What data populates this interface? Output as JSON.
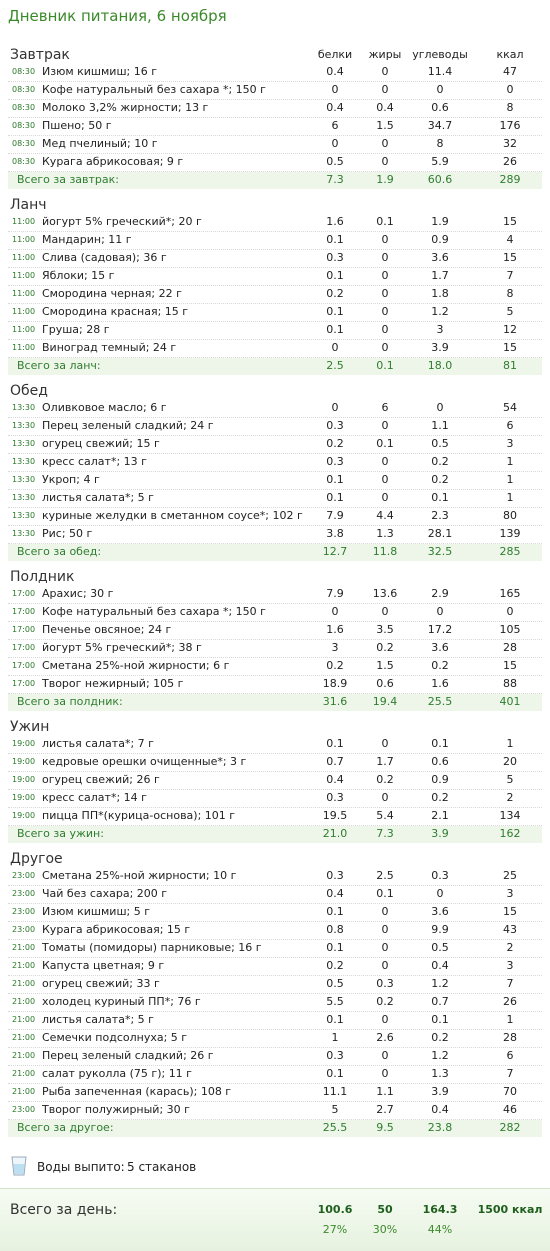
{
  "header": {
    "title": "Дневник питания, 6 ноября"
  },
  "columns": [
    "белки",
    "жиры",
    "углеводы",
    "ккал"
  ],
  "sections": [
    {
      "title": "Завтрак",
      "items": [
        [
          "08:30",
          "Изюм кишмиш; 16 г",
          "0.4",
          "0",
          "11.4",
          "47"
        ],
        [
          "08:30",
          "Кофе натуральный без сахара *; 150 г",
          "0",
          "0",
          "0",
          "0"
        ],
        [
          "08:30",
          "Молоко 3,2% жирности; 13 г",
          "0.4",
          "0.4",
          "0.6",
          "8"
        ],
        [
          "08:30",
          "Пшено; 50 г",
          "6",
          "1.5",
          "34.7",
          "176"
        ],
        [
          "08:30",
          "Мед пчелиный; 10 г",
          "0",
          "0",
          "8",
          "32"
        ],
        [
          "08:30",
          "Курага абрикосовая; 9 г",
          "0.5",
          "0",
          "5.9",
          "26"
        ]
      ],
      "total": [
        "Всего за завтрак:",
        "7.3",
        "1.9",
        "60.6",
        "289"
      ]
    },
    {
      "title": "Ланч",
      "items": [
        [
          "11:00",
          "йогурт 5% греческий*; 20 г",
          "1.6",
          "0.1",
          "1.9",
          "15"
        ],
        [
          "11:00",
          "Мандарин; 11 г",
          "0.1",
          "0",
          "0.9",
          "4"
        ],
        [
          "11:00",
          "Слива (садовая); 36 г",
          "0.3",
          "0",
          "3.6",
          "15"
        ],
        [
          "11:00",
          "Яблоки; 15 г",
          "0.1",
          "0",
          "1.7",
          "7"
        ],
        [
          "11:00",
          "Смородина черная; 22 г",
          "0.2",
          "0",
          "1.8",
          "8"
        ],
        [
          "11:00",
          "Смородина красная; 15 г",
          "0.1",
          "0",
          "1.2",
          "5"
        ],
        [
          "11:00",
          "Груша; 28 г",
          "0.1",
          "0",
          "3",
          "12"
        ],
        [
          "11:00",
          "Виноград темный; 24 г",
          "0",
          "0",
          "3.9",
          "15"
        ]
      ],
      "total": [
        "Всего за ланч:",
        "2.5",
        "0.1",
        "18.0",
        "81"
      ]
    },
    {
      "title": "Обед",
      "items": [
        [
          "13:30",
          "Оливковое масло; 6 г",
          "0",
          "6",
          "0",
          "54"
        ],
        [
          "13:30",
          "Перец зеленый сладкий; 24 г",
          "0.3",
          "0",
          "1.1",
          "6"
        ],
        [
          "13:30",
          "огурец свежий; 15 г",
          "0.2",
          "0.1",
          "0.5",
          "3"
        ],
        [
          "13:30",
          "кресс салат*; 13 г",
          "0.3",
          "0",
          "0.2",
          "1"
        ],
        [
          "13:30",
          "Укроп; 4 г",
          "0.1",
          "0",
          "0.2",
          "1"
        ],
        [
          "13:30",
          "листья салата*; 5 г",
          "0.1",
          "0",
          "0.1",
          "1"
        ],
        [
          "13:30",
          "куриные желудки в сметанном соусе*; 102 г",
          "7.9",
          "4.4",
          "2.3",
          "80"
        ],
        [
          "13:30",
          "Рис; 50 г",
          "3.8",
          "1.3",
          "28.1",
          "139"
        ]
      ],
      "total": [
        "Всего за обед:",
        "12.7",
        "11.8",
        "32.5",
        "285"
      ]
    },
    {
      "title": "Полдник",
      "items": [
        [
          "17:00",
          "Арахис; 30 г",
          "7.9",
          "13.6",
          "2.9",
          "165"
        ],
        [
          "17:00",
          "Кофе натуральный без сахара *; 150 г",
          "0",
          "0",
          "0",
          "0"
        ],
        [
          "17:00",
          "Печенье овсяное; 24 г",
          "1.6",
          "3.5",
          "17.2",
          "105"
        ],
        [
          "17:00",
          "йогурт 5% греческий*; 38 г",
          "3",
          "0.2",
          "3.6",
          "28"
        ],
        [
          "17:00",
          "Сметана 25%-ной жирности; 6 г",
          "0.2",
          "1.5",
          "0.2",
          "15"
        ],
        [
          "17:00",
          "Творог нежирный; 105 г",
          "18.9",
          "0.6",
          "1.6",
          "88"
        ]
      ],
      "total": [
        "Всего за полдник:",
        "31.6",
        "19.4",
        "25.5",
        "401"
      ]
    },
    {
      "title": "Ужин",
      "items": [
        [
          "19:00",
          "листья салата*; 7 г",
          "0.1",
          "0",
          "0.1",
          "1"
        ],
        [
          "19:00",
          "кедровые орешки очищенные*; 3 г",
          "0.7",
          "1.7",
          "0.6",
          "20"
        ],
        [
          "19:00",
          "огурец свежий; 26 г",
          "0.4",
          "0.2",
          "0.9",
          "5"
        ],
        [
          "19:00",
          "кресс салат*; 14 г",
          "0.3",
          "0",
          "0.2",
          "2"
        ],
        [
          "19:00",
          "пицца ПП*(курица-основа); 101 г",
          "19.5",
          "5.4",
          "2.1",
          "134"
        ]
      ],
      "total": [
        "Всего за ужин:",
        "21.0",
        "7.3",
        "3.9",
        "162"
      ]
    },
    {
      "title": "Другое",
      "items": [
        [
          "23:00",
          "Сметана 25%-ной жирности; 10 г",
          "0.3",
          "2.5",
          "0.3",
          "25"
        ],
        [
          "23:00",
          "Чай без сахара; 200 г",
          "0.4",
          "0.1",
          "0",
          "3"
        ],
        [
          "23:00",
          "Изюм кишмиш; 5 г",
          "0.1",
          "0",
          "3.6",
          "15"
        ],
        [
          "23:00",
          "Курага абрикосовая; 15 г",
          "0.8",
          "0",
          "9.9",
          "43"
        ],
        [
          "21:00",
          "Томаты (помидоры) парниковые; 16 г",
          "0.1",
          "0",
          "0.5",
          "2"
        ],
        [
          "21:00",
          "Капуста цветная; 9 г",
          "0.2",
          "0",
          "0.4",
          "3"
        ],
        [
          "21:00",
          "огурец свежий; 33 г",
          "0.5",
          "0.3",
          "1.2",
          "7"
        ],
        [
          "21:00",
          "холодец куриный ПП*; 76 г",
          "5.5",
          "0.2",
          "0.7",
          "26"
        ],
        [
          "21:00",
          "листья салата*; 5 г",
          "0.1",
          "0",
          "0.1",
          "1"
        ],
        [
          "21:00",
          "Семечки подсолнуха; 5 г",
          "1",
          "2.6",
          "0.2",
          "28"
        ],
        [
          "21:00",
          "Перец зеленый сладкий; 26 г",
          "0.3",
          "0",
          "1.2",
          "6"
        ],
        [
          "21:00",
          "салат руколла (75 г); 11 г",
          "0.1",
          "0",
          "1.3",
          "7"
        ],
        [
          "21:00",
          "Рыба запеченная (карась); 108 г",
          "11.1",
          "1.1",
          "3.9",
          "70"
        ],
        [
          "23:00",
          "Творог полужирный; 30 г",
          "5",
          "2.7",
          "0.4",
          "46"
        ]
      ],
      "total": [
        "Всего за другое:",
        "25.5",
        "9.5",
        "23.8",
        "282"
      ]
    }
  ],
  "water": {
    "label": "Воды выпито:",
    "value": "5 стаканов"
  },
  "day_total": {
    "label": "Всего за день:",
    "values": [
      "100.6",
      "50",
      "164.3",
      "1500 ккал"
    ],
    "percents": [
      "27%",
      "30%",
      "44%"
    ]
  }
}
